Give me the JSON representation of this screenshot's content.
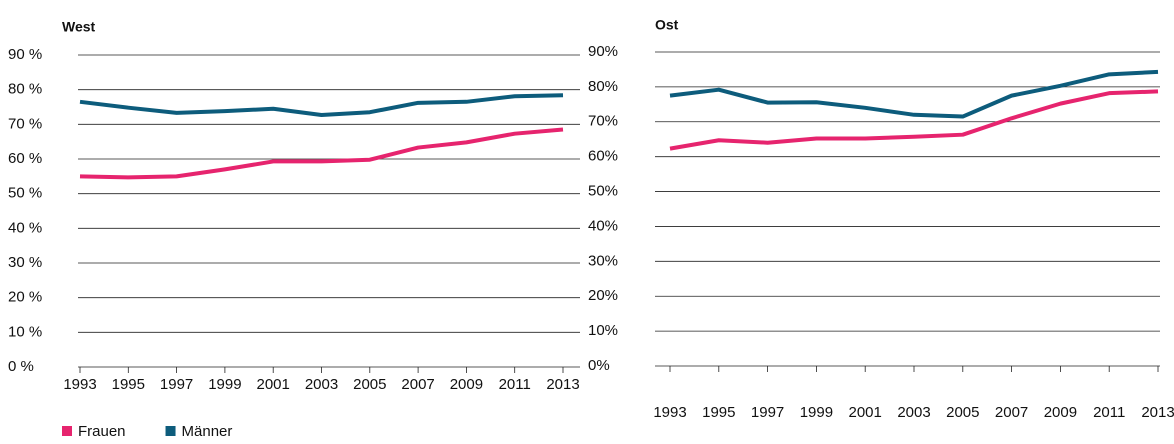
{
  "chart_data": [
    {
      "type": "line",
      "title": "West",
      "x": [
        1993,
        1995,
        1997,
        1999,
        2001,
        2003,
        2005,
        2007,
        2009,
        2011,
        2013
      ],
      "xlim": [
        1993,
        2013
      ],
      "xticks": [
        1993,
        1995,
        1997,
        1999,
        2001,
        2003,
        2005,
        2007,
        2009,
        2011,
        2013
      ],
      "ylim": [
        0,
        90
      ],
      "yticks": [
        {
          "value": 0,
          "label": "0 %"
        },
        {
          "value": 10,
          "label": "10 %"
        },
        {
          "value": 20,
          "label": "20 %"
        },
        {
          "value": 30,
          "label": "30 %"
        },
        {
          "value": 40,
          "label": "40 %"
        },
        {
          "value": 50,
          "label": "50 %"
        },
        {
          "value": 60,
          "label": "60 %"
        },
        {
          "value": 70,
          "label": "70 %"
        },
        {
          "value": 80,
          "label": "80 %"
        },
        {
          "value": 90,
          "label": "90 %"
        }
      ],
      "grid": true,
      "series": [
        {
          "name": "Frauen",
          "color": "#e6246e",
          "values": [
            55,
            54.7,
            55,
            57,
            59.3,
            59.3,
            59.8,
            63.3,
            64.8,
            67.3,
            68.5
          ]
        },
        {
          "name": "Männer",
          "color": "#0d5c7c",
          "values": [
            76.5,
            74.8,
            73.3,
            73.8,
            74.5,
            72.7,
            73.5,
            76.2,
            76.5,
            78.1,
            78.4
          ]
        }
      ]
    },
    {
      "type": "line",
      "title": "Ost",
      "x": [
        1993,
        1995,
        1997,
        1999,
        2001,
        2003,
        2005,
        2007,
        2009,
        2011,
        2013
      ],
      "xlim": [
        1993,
        2013
      ],
      "xticks": [
        1993,
        1995,
        1997,
        1999,
        2001,
        2003,
        2005,
        2007,
        2009,
        2011,
        2013
      ],
      "ylim": [
        0,
        90
      ],
      "yticks": [
        {
          "value": 0,
          "label": "0%"
        },
        {
          "value": 10,
          "label": "10%"
        },
        {
          "value": 20,
          "label": "20%"
        },
        {
          "value": 30,
          "label": "30%"
        },
        {
          "value": 40,
          "label": "40%"
        },
        {
          "value": 50,
          "label": "50%"
        },
        {
          "value": 60,
          "label": "60%"
        },
        {
          "value": 70,
          "label": "70%"
        },
        {
          "value": 80,
          "label": "80%"
        },
        {
          "value": 90,
          "label": "90%"
        }
      ],
      "grid": true,
      "series": [
        {
          "name": "Frauen",
          "color": "#e6246e",
          "values": [
            62.3,
            64.7,
            64,
            65.2,
            65.2,
            65.7,
            66.3,
            71,
            75.2,
            78.2,
            78.7
          ]
        },
        {
          "name": "Männer",
          "color": "#0d5c7c",
          "values": [
            77.5,
            79.2,
            75.5,
            75.6,
            74,
            72,
            71.5,
            77.5,
            80.3,
            83.6,
            84.3
          ]
        }
      ]
    }
  ]
}
